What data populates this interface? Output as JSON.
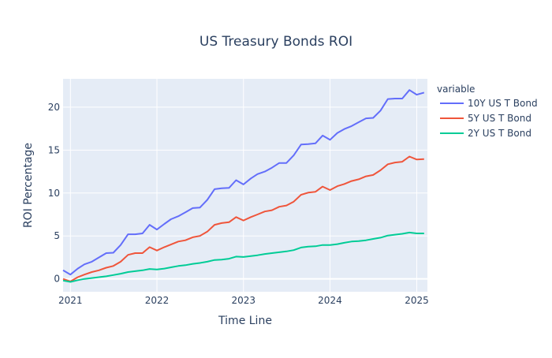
{
  "chart_data": {
    "type": "line",
    "title": "US Treasury Bonds ROI",
    "xlabel": "Time Line",
    "ylabel": "ROI Percentage",
    "legend_title": "variable",
    "legend_position": "right",
    "grid": true,
    "colors": {
      "plot_bg": "#E5ECF6",
      "grid": "#ffffff",
      "text": "#2a3f5f"
    },
    "xlim": [
      "2020-12-01",
      "2025-02-15"
    ],
    "ylim": [
      -1.5,
      23.3
    ],
    "x_ticks": [
      "2021",
      "2022",
      "2023",
      "2024",
      "2025"
    ],
    "y_ticks": [
      0,
      5,
      10,
      15,
      20
    ],
    "x": [
      "2020-12-01",
      "2021-01-01",
      "2021-02-01",
      "2021-03-01",
      "2021-04-01",
      "2021-05-01",
      "2021-06-01",
      "2021-07-01",
      "2021-08-01",
      "2021-09-01",
      "2021-10-01",
      "2021-11-01",
      "2021-12-01",
      "2022-01-01",
      "2022-02-01",
      "2022-03-01",
      "2022-04-01",
      "2022-05-01",
      "2022-06-01",
      "2022-07-01",
      "2022-08-01",
      "2022-09-01",
      "2022-10-01",
      "2022-11-01",
      "2022-12-01",
      "2023-01-01",
      "2023-02-01",
      "2023-03-01",
      "2023-04-01",
      "2023-05-01",
      "2023-06-01",
      "2023-07-01",
      "2023-08-01",
      "2023-09-01",
      "2023-10-01",
      "2023-11-01",
      "2023-12-01",
      "2024-01-01",
      "2024-02-01",
      "2024-03-01",
      "2024-04-01",
      "2024-05-01",
      "2024-06-01",
      "2024-07-01",
      "2024-08-01",
      "2024-09-01",
      "2024-10-01",
      "2024-11-01",
      "2024-12-01",
      "2025-01-01",
      "2025-02-01"
    ],
    "series": [
      {
        "name": "10Y US T Bond",
        "color": "#636EFA",
        "values": [
          1.0,
          0.5,
          1.2,
          1.7,
          2.0,
          2.5,
          3.0,
          3.05,
          3.95,
          5.2,
          5.2,
          5.3,
          6.3,
          5.75,
          6.4,
          6.95,
          7.3,
          7.75,
          8.25,
          8.3,
          9.2,
          10.45,
          10.55,
          10.6,
          11.5,
          11.0,
          11.7,
          12.2,
          12.5,
          12.95,
          13.5,
          13.5,
          14.4,
          15.65,
          15.7,
          15.8,
          16.7,
          16.2,
          17.0,
          17.45,
          17.8,
          18.25,
          18.7,
          18.75,
          19.6,
          20.95,
          21.0,
          21.0,
          22.0,
          21.45,
          21.7
        ]
      },
      {
        "name": "5Y US T Bond",
        "color": "#EF553B",
        "values": [
          0.0,
          -0.3,
          0.2,
          0.5,
          0.8,
          1.0,
          1.3,
          1.5,
          2.0,
          2.8,
          3.0,
          3.0,
          3.7,
          3.3,
          3.7,
          4.0,
          4.35,
          4.5,
          4.85,
          5.0,
          5.5,
          6.3,
          6.5,
          6.6,
          7.2,
          6.8,
          7.2,
          7.5,
          7.85,
          8.0,
          8.4,
          8.55,
          9.0,
          9.8,
          10.05,
          10.15,
          10.75,
          10.35,
          10.8,
          11.05,
          11.4,
          11.6,
          11.95,
          12.1,
          12.65,
          13.35,
          13.55,
          13.65,
          14.25,
          13.9,
          13.95
        ]
      },
      {
        "name": "2Y US T Bond",
        "color": "#00CC96",
        "values": [
          -0.2,
          -0.35,
          -0.15,
          0.0,
          0.1,
          0.2,
          0.3,
          0.45,
          0.6,
          0.8,
          0.9,
          1.0,
          1.15,
          1.1,
          1.2,
          1.35,
          1.5,
          1.6,
          1.75,
          1.85,
          2.0,
          2.2,
          2.25,
          2.35,
          2.6,
          2.55,
          2.65,
          2.75,
          2.9,
          3.0,
          3.1,
          3.2,
          3.35,
          3.65,
          3.75,
          3.8,
          3.95,
          3.95,
          4.05,
          4.2,
          4.35,
          4.4,
          4.5,
          4.65,
          4.8,
          5.05,
          5.15,
          5.25,
          5.4,
          5.3,
          5.3
        ]
      }
    ]
  }
}
